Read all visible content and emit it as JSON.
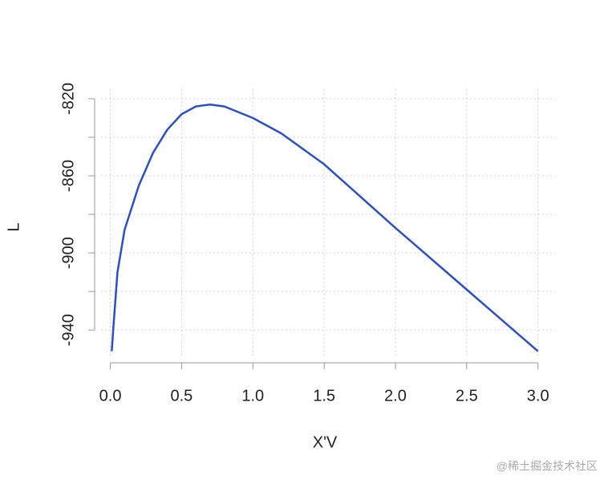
{
  "chart_data": {
    "type": "line",
    "x_label": "X'V",
    "y_label": "L",
    "x": [
      0.01,
      0.02,
      0.05,
      0.1,
      0.2,
      0.3,
      0.4,
      0.5,
      0.6,
      0.7,
      0.8,
      1.0,
      1.2,
      1.5,
      2.0,
      2.5,
      3.0
    ],
    "series": [
      {
        "name": "L",
        "color": "#2a4fc8",
        "values": [
          -951,
          -940,
          -910,
          -888,
          -865,
          -848,
          -836,
          -828,
          -824,
          -823,
          -824,
          -830,
          -838,
          -854,
          -887,
          -919,
          -951
        ]
      }
    ],
    "xlim": [
      -0.11,
      3.12
    ],
    "ylim": [
      -957,
      -815
    ],
    "xticks": [
      {
        "value": 0,
        "label": "0.0"
      },
      {
        "value": 0.5,
        "label": "0.5"
      },
      {
        "value": 1,
        "label": "1.0"
      },
      {
        "value": 1.5,
        "label": "1.5"
      },
      {
        "value": 2,
        "label": "2.0"
      },
      {
        "value": 2.5,
        "label": "2.5"
      },
      {
        "value": 3,
        "label": "3.0"
      }
    ],
    "yticks": [
      -940,
      -900,
      -860,
      -820
    ],
    "yminor": [
      -920,
      -880,
      -840
    ],
    "grid": true,
    "watermark": "@稀土掘金技术社区"
  }
}
